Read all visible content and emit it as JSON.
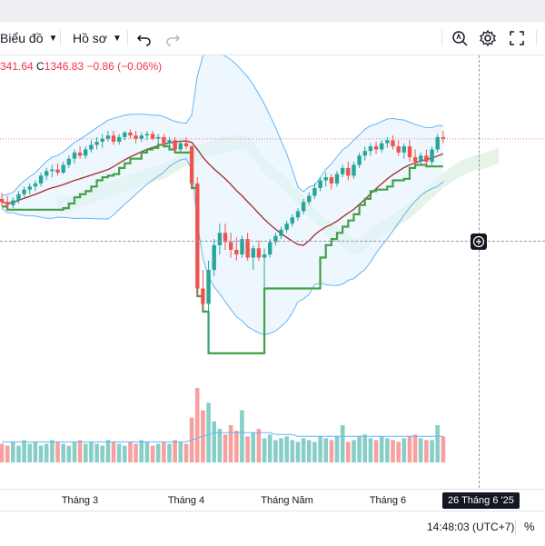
{
  "toolbar": {
    "chart_label": "Biểu đồ",
    "profile_label": "Hồ sơ"
  },
  "legend": {
    "partial_value": "341.64",
    "close_label": "C",
    "close_value": "1346.83",
    "change": "−0.86 (−0.06%)"
  },
  "x_axis": {
    "labels": [
      "Tháng 3",
      "Tháng 4",
      "Tháng Năm",
      "Tháng 6"
    ],
    "crosshair_date": "26 Tháng 6 '25"
  },
  "footer": {
    "clock": "14:48:03 (UTC+7)",
    "percent_toggle": "%"
  },
  "colors": {
    "up": "#26a69a",
    "down": "#ef5350",
    "band": "#64b5f6",
    "band_fill": "#e3f2fd",
    "ma": "#a52a2a",
    "trailing": "#43a047",
    "cloud": "#c8e6c9"
  },
  "icons": [
    "chevron-down-icon",
    "undo-icon",
    "redo-icon",
    "zoom-search-icon",
    "gear-icon",
    "fullscreen-icon",
    "plus-icon"
  ],
  "chart_data": {
    "type": "candlestick",
    "title": "",
    "last_close": 1346.83,
    "change": -0.86,
    "change_pct": -0.06,
    "x_ticks": [
      "Tháng 3",
      "Tháng 4",
      "Tháng Năm",
      "Tháng 6"
    ],
    "crosshair_date": "26 Tháng 6 '25",
    "indicators": [
      "bollinger-bands",
      "moving-average",
      "trailing-stop",
      "ichimoku-cloud",
      "volume",
      "volume-ma"
    ],
    "candles": [
      [
        1308,
        1312,
        1303,
        1306
      ],
      [
        1306,
        1310,
        1301,
        1304
      ],
      [
        1304,
        1309,
        1302,
        1307
      ],
      [
        1307,
        1313,
        1305,
        1311
      ],
      [
        1311,
        1316,
        1309,
        1314
      ],
      [
        1314,
        1318,
        1311,
        1316
      ],
      [
        1316,
        1320,
        1313,
        1318
      ],
      [
        1318,
        1325,
        1316,
        1323
      ],
      [
        1323,
        1328,
        1320,
        1326
      ],
      [
        1326,
        1330,
        1322,
        1327
      ],
      [
        1327,
        1331,
        1323,
        1325
      ],
      [
        1325,
        1332,
        1324,
        1330
      ],
      [
        1330,
        1336,
        1328,
        1334
      ],
      [
        1334,
        1340,
        1331,
        1338
      ],
      [
        1338,
        1342,
        1334,
        1336
      ],
      [
        1336,
        1342,
        1334,
        1340
      ],
      [
        1340,
        1346,
        1338,
        1343
      ],
      [
        1343,
        1348,
        1340,
        1345
      ],
      [
        1345,
        1350,
        1341,
        1347
      ],
      [
        1347,
        1352,
        1345,
        1349
      ],
      [
        1349,
        1352,
        1343,
        1345
      ],
      [
        1345,
        1350,
        1343,
        1348
      ],
      [
        1348,
        1352,
        1346,
        1351
      ],
      [
        1351,
        1353,
        1347,
        1349
      ],
      [
        1349,
        1352,
        1344,
        1347
      ],
      [
        1347,
        1351,
        1345,
        1349
      ],
      [
        1349,
        1352,
        1346,
        1350
      ],
      [
        1350,
        1352,
        1346,
        1347
      ],
      [
        1347,
        1350,
        1343,
        1348
      ],
      [
        1348,
        1350,
        1342,
        1344
      ],
      [
        1344,
        1348,
        1340,
        1346
      ],
      [
        1346,
        1348,
        1338,
        1340
      ],
      [
        1340,
        1346,
        1338,
        1344
      ],
      [
        1344,
        1348,
        1340,
        1342
      ],
      [
        1342,
        1343,
        1315,
        1318
      ],
      [
        1318,
        1322,
        1245,
        1250
      ],
      [
        1250,
        1262,
        1235,
        1240
      ],
      [
        1240,
        1268,
        1208,
        1262
      ],
      [
        1262,
        1282,
        1258,
        1278
      ],
      [
        1278,
        1292,
        1272,
        1286
      ],
      [
        1286,
        1292,
        1275,
        1280
      ],
      [
        1280,
        1286,
        1270,
        1275
      ],
      [
        1275,
        1283,
        1268,
        1272
      ],
      [
        1272,
        1284,
        1270,
        1282
      ],
      [
        1282,
        1286,
        1268,
        1270
      ],
      [
        1270,
        1278,
        1262,
        1276
      ],
      [
        1276,
        1281,
        1268,
        1270
      ],
      [
        1270,
        1276,
        1250,
        1272
      ],
      [
        1272,
        1282,
        1270,
        1280
      ],
      [
        1280,
        1286,
        1278,
        1284
      ],
      [
        1284,
        1290,
        1282,
        1288
      ],
      [
        1288,
        1294,
        1286,
        1292
      ],
      [
        1292,
        1298,
        1290,
        1296
      ],
      [
        1296,
        1302,
        1294,
        1300
      ],
      [
        1300,
        1308,
        1298,
        1306
      ],
      [
        1306,
        1312,
        1304,
        1310
      ],
      [
        1310,
        1318,
        1308,
        1315
      ],
      [
        1315,
        1322,
        1313,
        1320
      ],
      [
        1320,
        1325,
        1316,
        1322
      ],
      [
        1322,
        1324,
        1314,
        1318
      ],
      [
        1318,
        1326,
        1316,
        1324
      ],
      [
        1324,
        1330,
        1322,
        1328
      ],
      [
        1328,
        1332,
        1320,
        1323
      ],
      [
        1323,
        1332,
        1321,
        1330
      ],
      [
        1330,
        1338,
        1328,
        1336
      ],
      [
        1336,
        1342,
        1333,
        1339
      ],
      [
        1339,
        1344,
        1336,
        1342
      ],
      [
        1342,
        1345,
        1337,
        1340
      ],
      [
        1340,
        1346,
        1338,
        1344
      ],
      [
        1344,
        1348,
        1341,
        1346
      ],
      [
        1346,
        1349,
        1340,
        1342
      ],
      [
        1342,
        1346,
        1336,
        1338
      ],
      [
        1338,
        1344,
        1334,
        1342
      ],
      [
        1342,
        1346,
        1332,
        1335
      ],
      [
        1335,
        1340,
        1330,
        1332
      ],
      [
        1332,
        1338,
        1330,
        1336
      ],
      [
        1336,
        1340,
        1329,
        1332
      ],
      [
        1332,
        1342,
        1330,
        1340
      ],
      [
        1340,
        1350,
        1338,
        1348
      ],
      [
        1348,
        1352,
        1344,
        1347
      ]
    ],
    "volume": [
      10,
      9,
      11,
      9,
      12,
      10,
      11,
      9,
      10,
      12,
      11,
      10,
      9,
      11,
      12,
      10,
      11,
      10,
      9,
      12,
      11,
      10,
      9,
      11,
      10,
      12,
      11,
      9,
      10,
      11,
      10,
      12,
      11,
      10,
      24,
      40,
      28,
      32,
      22,
      18,
      15,
      20,
      17,
      28,
      14,
      16,
      18,
      13,
      15,
      12,
      13,
      14,
      12,
      11,
      13,
      12,
      11,
      14,
      13,
      12,
      14,
      20,
      11,
      12,
      14,
      15,
      13,
      12,
      14,
      13,
      12,
      11,
      13,
      14,
      15,
      13,
      12,
      12,
      20,
      14
    ],
    "volume_ma": [
      11,
      11,
      11,
      11,
      11,
      11,
      11,
      11,
      11,
      11,
      11,
      11,
      11,
      11,
      11,
      11,
      11,
      11,
      11,
      11,
      11,
      11,
      11,
      11,
      11,
      11,
      11,
      11,
      11,
      11,
      11,
      11,
      11,
      11,
      12,
      13,
      14,
      15,
      16,
      16,
      16,
      16,
      16,
      16,
      16,
      16,
      16,
      16,
      16,
      15,
      15,
      15,
      15,
      14,
      14,
      14,
      14,
      14,
      14,
      14,
      14,
      14,
      14,
      14,
      14,
      14,
      14,
      14,
      14,
      14,
      14,
      14,
      14,
      14,
      14,
      14,
      14,
      14,
      14,
      14
    ]
  }
}
